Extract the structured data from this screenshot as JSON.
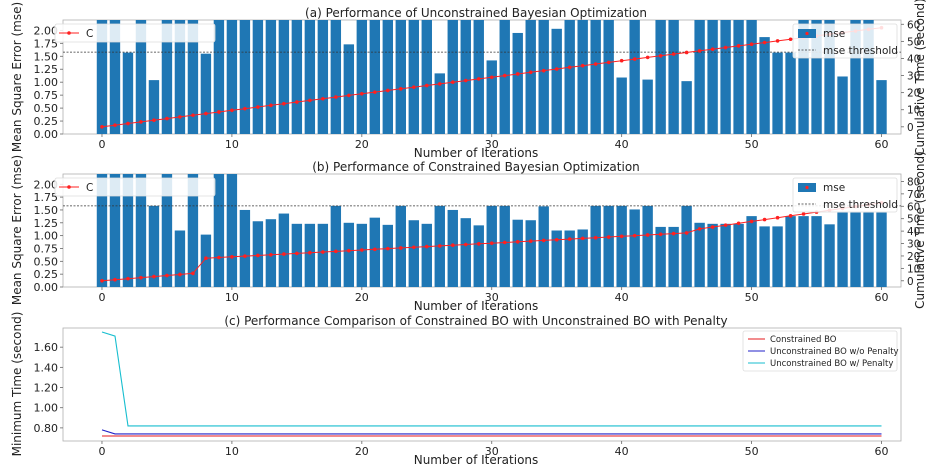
{
  "colors": {
    "bar": "#1f77b4",
    "time_line": "#ff2020",
    "threshold": "#333333",
    "constrained": "#e41a1c",
    "unconstrained_no_penalty": "#2020c8",
    "unconstrained_penalty": "#17becf",
    "spine": "#b0b0b0"
  },
  "chart_data": [
    {
      "type": "bar",
      "title": "(a) Performance of Unconstrained Bayesian Optimization",
      "xlabel": "Number of Iterations",
      "ylabel": "Mean Square Error (mse)",
      "y2label": "Cumulative Time (second)",
      "xlim": [
        -3,
        61.5
      ],
      "ylim": [
        0,
        2.2
      ],
      "y2lim": [
        -4.2,
        62.5
      ],
      "xticks": [
        "0",
        "10",
        "20",
        "30",
        "40",
        "50",
        "60"
      ],
      "yticks": [
        "0.00",
        "0.25",
        "0.50",
        "0.75",
        "1.00",
        "1.25",
        "1.50",
        "1.75",
        "2.00"
      ],
      "y2ticks": [
        "0",
        "10",
        "20",
        "30",
        "40",
        "50",
        "60"
      ],
      "threshold": 1.58,
      "legend_left": "Cumulative Training Time",
      "legend_right": [
        "mse",
        "mse threshold"
      ],
      "series": [
        {
          "name": "mse",
          "values": [
            2.2,
            2.2,
            1.57,
            2.2,
            1.04,
            2.2,
            2.2,
            2.2,
            1.55,
            2.2,
            2.2,
            2.2,
            2.2,
            2.2,
            2.2,
            2.2,
            2.2,
            2.2,
            2.2,
            1.73,
            2.2,
            2.2,
            2.2,
            2.2,
            2.2,
            2.2,
            1.17,
            2.2,
            2.2,
            2.2,
            1.42,
            2.2,
            1.95,
            2.2,
            2.2,
            2.03,
            2.2,
            2.2,
            2.2,
            2.2,
            1.09,
            2.2,
            1.05,
            2.2,
            2.2,
            1.02,
            2.2,
            2.2,
            2.2,
            2.2,
            2.2,
            1.87,
            1.57,
            1.57,
            2.2,
            2.2,
            2.2,
            1.11,
            2.2,
            2.2,
            1.04
          ]
        },
        {
          "name": "Cumulative Training Time",
          "values": [
            0.0,
            0.97,
            1.93,
            2.9,
            3.87,
            4.83,
            5.8,
            6.77,
            7.73,
            8.7,
            9.67,
            10.63,
            11.6,
            12.57,
            13.53,
            14.5,
            15.47,
            16.43,
            17.4,
            18.37,
            19.33,
            20.3,
            21.27,
            22.23,
            23.2,
            24.17,
            25.13,
            26.1,
            27.07,
            28.03,
            29.0,
            29.97,
            30.93,
            31.9,
            32.87,
            33.83,
            34.8,
            35.77,
            36.73,
            37.7,
            38.67,
            39.63,
            40.6,
            41.57,
            42.53,
            43.5,
            44.47,
            45.43,
            46.4,
            47.37,
            48.33,
            49.3,
            50.27,
            51.23,
            52.2,
            53.17,
            54.13,
            55.1,
            56.07,
            57.03,
            58.0
          ]
        }
      ]
    },
    {
      "type": "bar",
      "title": "(b) Performance of Constrained Bayesian Optimization",
      "xlabel": "Number of Iterations",
      "ylabel": "Mean Square Error (mse)",
      "y2label": "Cumulative Time (second)",
      "xlim": [
        -3,
        61.5
      ],
      "ylim": [
        0,
        2.2
      ],
      "y2lim": [
        -5,
        86
      ],
      "xticks": [
        "0",
        "10",
        "20",
        "30",
        "40",
        "50",
        "60"
      ],
      "yticks": [
        "0.00",
        "0.25",
        "0.50",
        "0.75",
        "1.00",
        "1.25",
        "1.50",
        "1.75",
        "2.00"
      ],
      "y2ticks": [
        "0",
        "10",
        "20",
        "30",
        "40",
        "50",
        "60",
        "70",
        "80"
      ],
      "threshold": 1.58,
      "legend_left": "Cumulative Training Time",
      "legend_right": [
        "mse",
        "mse threshold"
      ],
      "series": [
        {
          "name": "mse",
          "values": [
            2.2,
            2.2,
            2.2,
            2.2,
            1.58,
            2.2,
            1.1,
            2.2,
            1.02,
            2.2,
            2.2,
            1.5,
            1.28,
            1.32,
            1.43,
            1.23,
            1.23,
            1.23,
            1.58,
            1.25,
            1.23,
            1.35,
            1.21,
            1.58,
            1.3,
            1.23,
            1.58,
            1.5,
            1.34,
            1.2,
            1.58,
            1.58,
            1.31,
            1.3,
            1.57,
            1.1,
            1.1,
            1.12,
            1.58,
            1.58,
            1.58,
            1.51,
            1.58,
            1.17,
            1.17,
            1.58,
            1.25,
            1.23,
            1.23,
            1.23,
            1.38,
            1.18,
            1.18,
            1.38,
            1.38,
            1.38,
            1.22,
            1.45,
            1.45,
            1.45,
            1.45
          ]
        },
        {
          "name": "Cumulative Training Time",
          "values": [
            0.0,
            0.85,
            1.7,
            2.55,
            3.4,
            4.25,
            5.1,
            6.0,
            18.2,
            18.75,
            19.3,
            19.85,
            20.4,
            20.95,
            21.5,
            22.05,
            22.6,
            23.15,
            23.7,
            24.25,
            24.8,
            25.35,
            25.9,
            26.45,
            27.0,
            27.55,
            28.1,
            28.65,
            29.2,
            29.75,
            30.3,
            30.85,
            31.4,
            31.95,
            32.5,
            33.05,
            33.6,
            34.15,
            34.7,
            35.25,
            35.8,
            36.35,
            36.9,
            37.45,
            38.0,
            38.55,
            41.8,
            43.3,
            44.8,
            46.3,
            47.8,
            49.3,
            50.8,
            52.3,
            53.8,
            55.3,
            56.8,
            58.3,
            59.8,
            61.3,
            62.8
          ]
        }
      ]
    },
    {
      "type": "line",
      "title": "(c) Performance Comparison of Constrained BO with Unconstrained BO with Penalty",
      "xlabel": "Number of Iterations",
      "ylabel": "Minimum Time (second)",
      "xlim": [
        -3,
        61.5
      ],
      "ylim": [
        0.67,
        1.79
      ],
      "xticks": [
        "0",
        "10",
        "20",
        "30",
        "40",
        "50",
        "60"
      ],
      "yticks": [
        "0.80",
        "1.00",
        "1.20",
        "1.40",
        "1.60"
      ],
      "legend": "top-right",
      "series": [
        {
          "name": "Constrained BO",
          "x": [
            0,
            60
          ],
          "values": [
            0.72,
            0.72
          ]
        },
        {
          "name": "Unconstrained BO w/o Penalty",
          "x": [
            0,
            1,
            60
          ],
          "values": [
            0.78,
            0.74,
            0.74
          ]
        },
        {
          "name": "Unconstrained BO w/ Penalty",
          "x": [
            0,
            1,
            2,
            60
          ],
          "values": [
            1.75,
            1.71,
            0.82,
            0.82
          ]
        }
      ]
    }
  ]
}
